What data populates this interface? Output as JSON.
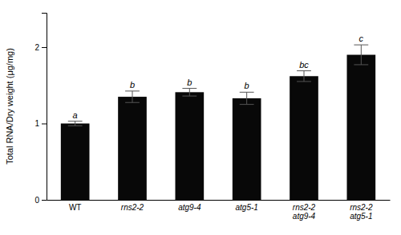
{
  "chart_data": {
    "type": "bar",
    "categories": [
      "WT",
      "rns2-2",
      "atg9-4",
      "atg5-1",
      "rns2-2\natg9-4",
      "rns2-2\natg5-1"
    ],
    "values": [
      1.0,
      1.35,
      1.41,
      1.33,
      1.62,
      1.9
    ],
    "errors": [
      0.03,
      0.075,
      0.05,
      0.08,
      0.07,
      0.13
    ],
    "annotations": [
      "a",
      "b",
      "b",
      "b",
      "bc",
      "c"
    ],
    "color": "#080808",
    "ylabel": "Total RNA/Dry weight (μg/mg)",
    "ylim": [
      0,
      2.45
    ],
    "yticks": [
      0,
      1,
      2
    ],
    "grid": false
  }
}
